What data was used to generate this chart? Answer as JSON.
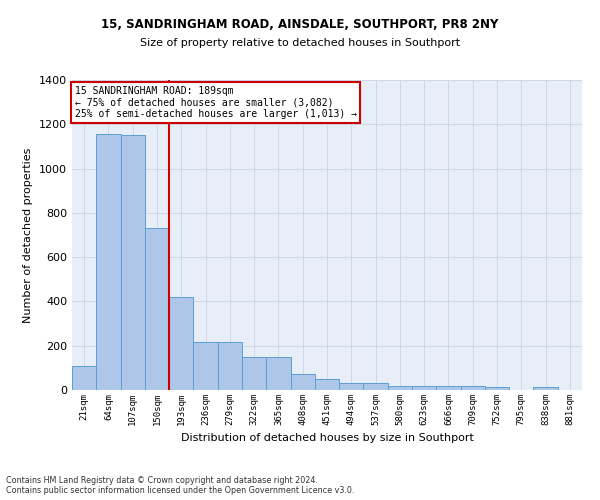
{
  "title1": "15, SANDRINGHAM ROAD, AINSDALE, SOUTHPORT, PR8 2NY",
  "title2": "Size of property relative to detached houses in Southport",
  "xlabel": "Distribution of detached houses by size in Southport",
  "ylabel": "Number of detached properties",
  "footer1": "Contains HM Land Registry data © Crown copyright and database right 2024.",
  "footer2": "Contains public sector information licensed under the Open Government Licence v3.0.",
  "bar_labels": [
    "21sqm",
    "64sqm",
    "107sqm",
    "150sqm",
    "193sqm",
    "236sqm",
    "279sqm",
    "322sqm",
    "365sqm",
    "408sqm",
    "451sqm",
    "494sqm",
    "537sqm",
    "580sqm",
    "623sqm",
    "666sqm",
    "709sqm",
    "752sqm",
    "795sqm",
    "838sqm",
    "881sqm"
  ],
  "bar_values": [
    110,
    1155,
    1150,
    730,
    420,
    215,
    215,
    150,
    150,
    72,
    48,
    33,
    33,
    18,
    18,
    18,
    18,
    15,
    0,
    15,
    0
  ],
  "bar_color": "#aec6e8",
  "bar_edge_color": "#5a9fd4",
  "grid_color": "#d0d8e8",
  "background_color": "#e8eef8",
  "vline_x_index": 4,
  "vline_color": "#cc0000",
  "annotation_line1": "15 SANDRINGHAM ROAD: 189sqm",
  "annotation_line2": "← 75% of detached houses are smaller (3,082)",
  "annotation_line3": "25% of semi-detached houses are larger (1,013) →",
  "annotation_box_color": "#cc0000",
  "ylim": [
    0,
    1400
  ],
  "yticks": [
    0,
    200,
    400,
    600,
    800,
    1000,
    1200,
    1400
  ],
  "fig_width": 6.0,
  "fig_height": 5.0,
  "dpi": 100
}
